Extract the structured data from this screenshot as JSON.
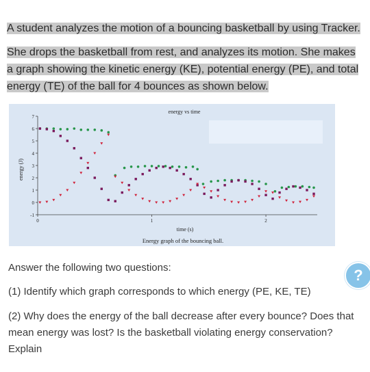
{
  "intro": {
    "line1": "A student analyzes the motion of a bouncing basketball by using Tracker.",
    "line2": "She drops the basketball from rest, and analyzes its motion. She makes a graph showing the kinetic energy (KE), potential energy (PE), and total energy (TE) of the ball for 4 bounces as shown below."
  },
  "figure": {
    "caption": "Energy graph of the bouncing ball.",
    "chart_data": {
      "type": "scatter",
      "title": "energy vs time",
      "xlabel": "time (s)",
      "ylabel": "energy (J)",
      "xlim": [
        0,
        2.45
      ],
      "ylim": [
        -1,
        7
      ],
      "x_ticks": [
        "0",
        "1",
        "2"
      ],
      "y_ticks": [
        "-1",
        "0",
        "1",
        "2",
        "3",
        "4",
        "5",
        "6",
        "7"
      ],
      "series": [
        {
          "color": "#27964a",
          "marker": "circle",
          "points": [
            [
              0.02,
              6.0
            ],
            [
              0.08,
              6.0
            ],
            [
              0.14,
              6.0
            ],
            [
              0.2,
              5.95
            ],
            [
              0.26,
              5.95
            ],
            [
              0.32,
              6.0
            ],
            [
              0.38,
              5.9
            ],
            [
              0.44,
              5.9
            ],
            [
              0.5,
              5.9
            ],
            [
              0.56,
              5.85
            ],
            [
              0.62,
              5.7
            ],
            [
              0.68,
              2.2
            ],
            [
              0.76,
              2.8
            ],
            [
              0.82,
              2.9
            ],
            [
              0.88,
              2.9
            ],
            [
              0.94,
              2.95
            ],
            [
              1.0,
              2.95
            ],
            [
              1.06,
              2.95
            ],
            [
              1.12,
              2.95
            ],
            [
              1.18,
              2.9
            ],
            [
              1.24,
              2.9
            ],
            [
              1.3,
              2.85
            ],
            [
              1.36,
              2.9
            ],
            [
              1.4,
              2.7
            ],
            [
              1.45,
              1.5
            ],
            [
              1.52,
              1.7
            ],
            [
              1.58,
              1.75
            ],
            [
              1.64,
              1.8
            ],
            [
              1.7,
              1.8
            ],
            [
              1.76,
              1.8
            ],
            [
              1.82,
              1.8
            ],
            [
              1.88,
              1.75
            ],
            [
              1.94,
              1.7
            ],
            [
              2.0,
              1.5
            ],
            [
              2.08,
              0.9
            ],
            [
              2.14,
              1.2
            ],
            [
              2.2,
              1.25
            ],
            [
              2.26,
              1.3
            ],
            [
              2.32,
              1.3
            ],
            [
              2.38,
              1.25
            ],
            [
              2.42,
              1.2
            ]
          ]
        },
        {
          "color": "#7a1a5c",
          "marker": "square",
          "points": [
            [
              0.02,
              6.0
            ],
            [
              0.08,
              5.95
            ],
            [
              0.14,
              5.8
            ],
            [
              0.2,
              5.4
            ],
            [
              0.26,
              5.0
            ],
            [
              0.32,
              4.4
            ],
            [
              0.38,
              3.6
            ],
            [
              0.44,
              2.8
            ],
            [
              0.5,
              2.0
            ],
            [
              0.56,
              1.1
            ],
            [
              0.62,
              0.2
            ],
            [
              0.68,
              0.1
            ],
            [
              0.74,
              0.8
            ],
            [
              0.8,
              1.4
            ],
            [
              0.86,
              1.9
            ],
            [
              0.92,
              2.3
            ],
            [
              0.98,
              2.6
            ],
            [
              1.04,
              2.8
            ],
            [
              1.1,
              2.9
            ],
            [
              1.16,
              2.8
            ],
            [
              1.22,
              2.6
            ],
            [
              1.28,
              2.3
            ],
            [
              1.34,
              1.9
            ],
            [
              1.4,
              1.4
            ],
            [
              1.46,
              0.7
            ],
            [
              1.52,
              0.4
            ],
            [
              1.58,
              1.0
            ],
            [
              1.64,
              1.4
            ],
            [
              1.7,
              1.7
            ],
            [
              1.76,
              1.8
            ],
            [
              1.82,
              1.7
            ],
            [
              1.88,
              1.5
            ],
            [
              1.94,
              1.1
            ],
            [
              2.0,
              0.6
            ],
            [
              2.06,
              0.3
            ],
            [
              2.12,
              0.8
            ],
            [
              2.18,
              1.1
            ],
            [
              2.24,
              1.3
            ],
            [
              2.3,
              1.2
            ],
            [
              2.36,
              1.0
            ],
            [
              2.42,
              0.7
            ]
          ]
        },
        {
          "color": "#d0243c",
          "marker": "triangle",
          "points": [
            [
              0.02,
              0.0
            ],
            [
              0.08,
              0.05
            ],
            [
              0.14,
              0.2
            ],
            [
              0.2,
              0.6
            ],
            [
              0.26,
              1.0
            ],
            [
              0.32,
              1.6
            ],
            [
              0.38,
              2.4
            ],
            [
              0.44,
              3.2
            ],
            [
              0.5,
              4.0
            ],
            [
              0.56,
              4.8
            ],
            [
              0.62,
              5.5
            ],
            [
              0.68,
              2.1
            ],
            [
              0.74,
              1.6
            ],
            [
              0.8,
              1.0
            ],
            [
              0.86,
              0.6
            ],
            [
              0.92,
              0.3
            ],
            [
              0.98,
              0.1
            ],
            [
              1.04,
              0.0
            ],
            [
              1.1,
              0.0
            ],
            [
              1.16,
              0.1
            ],
            [
              1.22,
              0.3
            ],
            [
              1.28,
              0.6
            ],
            [
              1.34,
              1.0
            ],
            [
              1.4,
              1.5
            ],
            [
              1.46,
              1.2
            ],
            [
              1.52,
              0.9
            ],
            [
              1.58,
              0.5
            ],
            [
              1.64,
              0.2
            ],
            [
              1.7,
              0.05
            ],
            [
              1.76,
              0.0
            ],
            [
              1.82,
              0.05
            ],
            [
              1.88,
              0.2
            ],
            [
              1.94,
              0.5
            ],
            [
              2.0,
              0.9
            ],
            [
              2.06,
              0.8
            ],
            [
              2.12,
              0.4
            ],
            [
              2.18,
              0.15
            ],
            [
              2.24,
              0.0
            ],
            [
              2.3,
              0.05
            ],
            [
              2.36,
              0.2
            ],
            [
              2.42,
              0.5
            ]
          ]
        }
      ]
    }
  },
  "prompt": "Answer the following two questions:",
  "questions": [
    "(1) Identify which graph corresponds to which energy (PE, KE, TE)",
    "(2) Why does the energy of the ball decrease after every bounce? Does that mean energy was lost? Is the basketball violating energy conservation? Explain"
  ],
  "help_button": {
    "label": "?",
    "icon": "help-icon"
  }
}
